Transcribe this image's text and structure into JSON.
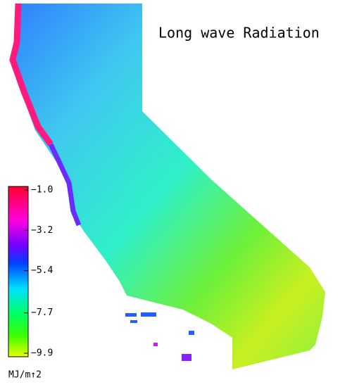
{
  "title": "Long wave Radiation",
  "colorbar": {
    "lim": [
      -1,
      -9.9
    ],
    "ticks": [
      {
        "value": -1.0,
        "label": "−1.0"
      },
      {
        "value": -3.2,
        "label": "−3.2"
      },
      {
        "value": -5.4,
        "label": "−5.4"
      },
      {
        "value": -7.7,
        "label": "−7.7"
      },
      {
        "value": -9.9,
        "label": "−9.9"
      }
    ],
    "unit": "MJ/m↑2"
  }
}
